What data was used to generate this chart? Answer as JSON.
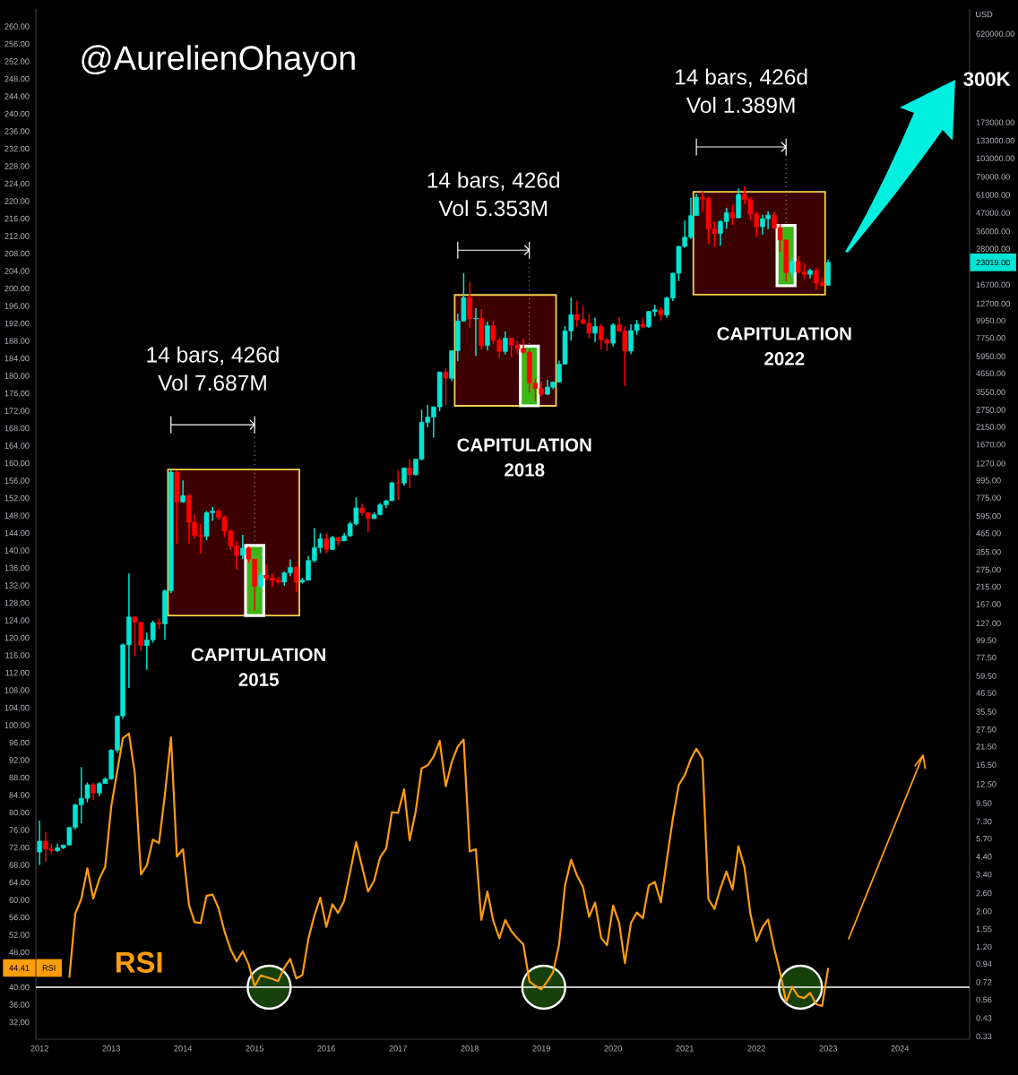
{
  "chart_data": {
    "type": "candlestick",
    "title": "@AurelienOhayon",
    "y2label": "USD",
    "log": "y2",
    "x": [
      "2012-01",
      "2012-02",
      "2012-03",
      "2012-04",
      "2012-05",
      "2012-06",
      "2012-07",
      "2012-08",
      "2012-09",
      "2012-10",
      "2012-11",
      "2012-12",
      "2013-01",
      "2013-02",
      "2013-03",
      "2013-04",
      "2013-05",
      "2013-06",
      "2013-07",
      "2013-08",
      "2013-09",
      "2013-10",
      "2013-11",
      "2013-12",
      "2014-01",
      "2014-02",
      "2014-03",
      "2014-04",
      "2014-05",
      "2014-06",
      "2014-07",
      "2014-08",
      "2014-09",
      "2014-10",
      "2014-11",
      "2014-12",
      "2015-01",
      "2015-02",
      "2015-03",
      "2015-04",
      "2015-05",
      "2015-06",
      "2015-07",
      "2015-08",
      "2015-09",
      "2015-10",
      "2015-11",
      "2015-12",
      "2016-01",
      "2016-02",
      "2016-03",
      "2016-04",
      "2016-05",
      "2016-06",
      "2016-07",
      "2016-08",
      "2016-09",
      "2016-10",
      "2016-11",
      "2016-12",
      "2017-01",
      "2017-02",
      "2017-03",
      "2017-04",
      "2017-05",
      "2017-06",
      "2017-07",
      "2017-08",
      "2017-09",
      "2017-10",
      "2017-11",
      "2017-12",
      "2018-01",
      "2018-02",
      "2018-03",
      "2018-04",
      "2018-05",
      "2018-06",
      "2018-07",
      "2018-08",
      "2018-09",
      "2018-10",
      "2018-11",
      "2018-12",
      "2019-01",
      "2019-02",
      "2019-03",
      "2019-04",
      "2019-05",
      "2019-06",
      "2019-07",
      "2019-08",
      "2019-09",
      "2019-10",
      "2019-11",
      "2019-12",
      "2020-01",
      "2020-02",
      "2020-03",
      "2020-04",
      "2020-05",
      "2020-06",
      "2020-07",
      "2020-08",
      "2020-09",
      "2020-10",
      "2020-11",
      "2020-12",
      "2021-01",
      "2021-02",
      "2021-03",
      "2021-04",
      "2021-05",
      "2021-06",
      "2021-07",
      "2021-08",
      "2021-09",
      "2021-10",
      "2021-11",
      "2021-12",
      "2022-01",
      "2022-02",
      "2022-03",
      "2022-04",
      "2022-05",
      "2022-06",
      "2022-07",
      "2022-08",
      "2022-09",
      "2022-10",
      "2022-11",
      "2022-12",
      "2023-01"
    ],
    "xlim": [
      "2011-12-13",
      "2024-12-22"
    ],
    "xticks": [
      "2012",
      "2013",
      "2014",
      "2015",
      "2016",
      "2017",
      "2018",
      "2019",
      "2020",
      "2021",
      "2022",
      "2023",
      "2024"
    ],
    "ylim": [
      28.1,
      264
    ],
    "yticks": [
      {
        "value": 32,
        "label": "32.00"
      },
      {
        "value": 36,
        "label": "36.00"
      },
      {
        "value": 40,
        "label": "40.00"
      },
      {
        "value": 44.41,
        "label": "44.41"
      },
      {
        "value": 48,
        "label": "48.00"
      },
      {
        "value": 52,
        "label": "52.00"
      },
      {
        "value": 56,
        "label": "56.00"
      },
      {
        "value": 60,
        "label": "60.00"
      },
      {
        "value": 64,
        "label": "64.00"
      },
      {
        "value": 68,
        "label": "68.00"
      },
      {
        "value": 72,
        "label": "72.00"
      },
      {
        "value": 76,
        "label": "76.00"
      },
      {
        "value": 80,
        "label": "80.00"
      },
      {
        "value": 84,
        "label": "84.00"
      },
      {
        "value": 88,
        "label": "88.00"
      },
      {
        "value": 92,
        "label": "92.00"
      },
      {
        "value": 96,
        "label": "96.00"
      },
      {
        "value": 100,
        "label": "100.00"
      },
      {
        "value": 104,
        "label": "104.00"
      },
      {
        "value": 108,
        "label": "108.00"
      },
      {
        "value": 112,
        "label": "112.00"
      },
      {
        "value": 116,
        "label": "116.00"
      },
      {
        "value": 120,
        "label": "120.00"
      },
      {
        "value": 124,
        "label": "124.00"
      },
      {
        "value": 128,
        "label": "128.00"
      },
      {
        "value": 132,
        "label": "132.00"
      },
      {
        "value": 136,
        "label": "136.00"
      },
      {
        "value": 140,
        "label": "140.00"
      },
      {
        "value": 144,
        "label": "144.00"
      },
      {
        "value": 148,
        "label": "148.00"
      },
      {
        "value": 152,
        "label": "152.00"
      },
      {
        "value": 156,
        "label": "156.00"
      },
      {
        "value": 160,
        "label": "160.00"
      },
      {
        "value": 164,
        "label": "164.00"
      },
      {
        "value": 168,
        "label": "168.00"
      },
      {
        "value": 172,
        "label": "172.00"
      },
      {
        "value": 176,
        "label": "176.00"
      },
      {
        "value": 180,
        "label": "180.00"
      },
      {
        "value": 184,
        "label": "184.00"
      },
      {
        "value": 188,
        "label": "188.00"
      },
      {
        "value": 192,
        "label": "192.00"
      },
      {
        "value": 196,
        "label": "196.00"
      },
      {
        "value": 200,
        "label": "200.00"
      },
      {
        "value": 204,
        "label": "204.00"
      },
      {
        "value": 208,
        "label": "208.00"
      },
      {
        "value": 212,
        "label": "212.00"
      },
      {
        "value": 216,
        "label": "216.00"
      },
      {
        "value": 220,
        "label": "220.00"
      },
      {
        "value": 224,
        "label": "224.00"
      },
      {
        "value": 228,
        "label": "228.00"
      },
      {
        "value": 232,
        "label": "232.00"
      },
      {
        "value": 236,
        "label": "236.00"
      },
      {
        "value": 240,
        "label": "240.00"
      },
      {
        "value": 244,
        "label": "244.00"
      },
      {
        "value": 248,
        "label": "248.00"
      },
      {
        "value": 252,
        "label": "252.00"
      },
      {
        "value": 256,
        "label": "256.00"
      },
      {
        "value": 260,
        "label": "260.00"
      }
    ],
    "y2lim": [
      0.317,
      888000
    ],
    "y2ticks": [
      {
        "value": 0.33,
        "label": "0.33"
      },
      {
        "value": 0.43,
        "label": "0.43"
      },
      {
        "value": 0.56,
        "label": "0.56"
      },
      {
        "value": 0.72,
        "label": "0.72"
      },
      {
        "value": 0.94,
        "label": "0.94"
      },
      {
        "value": 1.2,
        "label": "1.20"
      },
      {
        "value": 1.55,
        "label": "1.55"
      },
      {
        "value": 2,
        "label": "2.00"
      },
      {
        "value": 2.6,
        "label": "2.60"
      },
      {
        "value": 3.4,
        "label": "3.40"
      },
      {
        "value": 4.4,
        "label": "4.40"
      },
      {
        "value": 5.7,
        "label": "5.70"
      },
      {
        "value": 7.3,
        "label": "7.30"
      },
      {
        "value": 9.5,
        "label": "9.50"
      },
      {
        "value": 12.5,
        "label": "12.50"
      },
      {
        "value": 16.5,
        "label": "16.50"
      },
      {
        "value": 21.5,
        "label": "21.50"
      },
      {
        "value": 27.5,
        "label": "27.50"
      },
      {
        "value": 35.5,
        "label": "35.50"
      },
      {
        "value": 46.5,
        "label": "46.50"
      },
      {
        "value": 59.5,
        "label": "59.50"
      },
      {
        "value": 77.5,
        "label": "77.50"
      },
      {
        "value": 99.5,
        "label": "99.50"
      },
      {
        "value": 127,
        "label": "127.00"
      },
      {
        "value": 167,
        "label": "167.00"
      },
      {
        "value": 215,
        "label": "215.00"
      },
      {
        "value": 275,
        "label": "275.00"
      },
      {
        "value": 355,
        "label": "355.00"
      },
      {
        "value": 465,
        "label": "465.00"
      },
      {
        "value": 595,
        "label": "595.00"
      },
      {
        "value": 775,
        "label": "775.00"
      },
      {
        "value": 995,
        "label": "995.00"
      },
      {
        "value": 1270,
        "label": "1270.00"
      },
      {
        "value": 1670,
        "label": "1670.00"
      },
      {
        "value": 2150,
        "label": "2150.00"
      },
      {
        "value": 2750,
        "label": "2750.00"
      },
      {
        "value": 3550,
        "label": "3550.00"
      },
      {
        "value": 4650,
        "label": "4650.00"
      },
      {
        "value": 5950,
        "label": "5950.00"
      },
      {
        "value": 7750,
        "label": "7750.00"
      },
      {
        "value": 9950,
        "label": "9950.00"
      },
      {
        "value": 12700,
        "label": "12700.00"
      },
      {
        "value": 16700,
        "label": "16700.00"
      },
      {
        "value": 23019,
        "label": "23019.00"
      },
      {
        "value": 28000,
        "label": "28000.00"
      },
      {
        "value": 36000,
        "label": "36000.00"
      },
      {
        "value": 47000,
        "label": "47000.00"
      },
      {
        "value": 61000,
        "label": "61000.00"
      },
      {
        "value": 79000,
        "label": "79000.00"
      },
      {
        "value": 103000,
        "label": "103000.00"
      },
      {
        "value": 133000,
        "label": "133000.00"
      },
      {
        "value": 173000,
        "label": "173000.00"
      },
      {
        "value": 620000,
        "label": "620000.00"
      }
    ],
    "series": [
      {
        "axis": "y2",
        "ohlc": [
          [
            4.7,
            7.4,
            3.9,
            5.5
          ],
          [
            5.5,
            6.3,
            4.1,
            4.9
          ],
          [
            4.9,
            5.3,
            4.6,
            4.8
          ],
          [
            4.8,
            5.3,
            4.7,
            5.0
          ],
          [
            5.0,
            5.2,
            4.9,
            5.2
          ],
          [
            5.2,
            6.7,
            5.2,
            6.7
          ],
          [
            6.7,
            9.4,
            6.5,
            9.3
          ],
          [
            9.3,
            16.0,
            7.1,
            10.2
          ],
          [
            10.2,
            12.8,
            9.6,
            12.4
          ],
          [
            12.4,
            12.8,
            10.0,
            11.0
          ],
          [
            11.0,
            12.9,
            10.5,
            12.6
          ],
          [
            12.6,
            13.8,
            12.6,
            13.5
          ],
          [
            13.5,
            20.7,
            13.3,
            20.4
          ],
          [
            20.4,
            33.6,
            19.6,
            33.4
          ],
          [
            33.4,
            95,
            32,
            93
          ],
          [
            93,
            260,
            50,
            139
          ],
          [
            139,
            140,
            79,
            129
          ],
          [
            129,
            130,
            85,
            92
          ],
          [
            92,
            111,
            65,
            100
          ],
          [
            100,
            132,
            96,
            128
          ],
          [
            128,
            136,
            117,
            126
          ],
          [
            126,
            206,
            100,
            203
          ],
          [
            203,
            1163,
            196,
            1120
          ],
          [
            1120,
            1150,
            400,
            730
          ],
          [
            730,
            995,
            720,
            800
          ],
          [
            800,
            820,
            400,
            545
          ],
          [
            545,
            610,
            430,
            450
          ],
          [
            450,
            530,
            345,
            445
          ],
          [
            445,
            640,
            420,
            625
          ],
          [
            625,
            680,
            555,
            640
          ],
          [
            640,
            660,
            565,
            585
          ],
          [
            585,
            600,
            440,
            480
          ],
          [
            480,
            490,
            365,
            388
          ],
          [
            388,
            415,
            275,
            338
          ],
          [
            338,
            455,
            320,
            375
          ],
          [
            375,
            385,
            305,
            320
          ],
          [
            320,
            321,
            152,
            217
          ],
          [
            217,
            266,
            210,
            254
          ],
          [
            254,
            296,
            235,
            244
          ],
          [
            244,
            260,
            215,
            236
          ],
          [
            236,
            248,
            225,
            230
          ],
          [
            230,
            268,
            218,
            263
          ],
          [
            263,
            319,
            250,
            284
          ],
          [
            284,
            290,
            198,
            230
          ],
          [
            230,
            245,
            225,
            236
          ],
          [
            236,
            335,
            235,
            314
          ],
          [
            314,
            500,
            305,
            378
          ],
          [
            378,
            465,
            350,
            430
          ],
          [
            430,
            465,
            349,
            368
          ],
          [
            368,
            448,
            365,
            437
          ],
          [
            437,
            440,
            390,
            416
          ],
          [
            416,
            467,
            415,
            448
          ],
          [
            448,
            550,
            440,
            532
          ],
          [
            532,
            778,
            520,
            670
          ],
          [
            670,
            712,
            600,
            624
          ],
          [
            624,
            625,
            470,
            575
          ],
          [
            575,
            630,
            570,
            608
          ],
          [
            608,
            720,
            600,
            700
          ],
          [
            700,
            752,
            667,
            742
          ],
          [
            742,
            975,
            740,
            962
          ],
          [
            962,
            1150,
            752,
            958
          ],
          [
            958,
            1200,
            920,
            1190
          ],
          [
            1190,
            1350,
            890,
            1080
          ],
          [
            1080,
            1355,
            1070,
            1350
          ],
          [
            1350,
            2760,
            1330,
            2300
          ],
          [
            2300,
            2960,
            2140,
            2480
          ],
          [
            2480,
            2900,
            1845,
            2870
          ],
          [
            2870,
            4780,
            2700,
            4740
          ],
          [
            4740,
            4990,
            2960,
            4340
          ],
          [
            4340,
            6470,
            4160,
            6450
          ],
          [
            6450,
            11000,
            5550,
            9900
          ],
          [
            9900,
            19700,
            9800,
            13850
          ],
          [
            13850,
            17300,
            9000,
            10200
          ],
          [
            10200,
            11900,
            5980,
            10300
          ],
          [
            10300,
            11700,
            6600,
            6950
          ],
          [
            6950,
            9800,
            6500,
            9250
          ],
          [
            9250,
            9950,
            7100,
            7500
          ],
          [
            7500,
            7780,
            5800,
            6380
          ],
          [
            6380,
            8500,
            6100,
            7730
          ],
          [
            7730,
            7770,
            5900,
            7010
          ],
          [
            7010,
            7400,
            6100,
            6630
          ],
          [
            6630,
            7680,
            6200,
            6300
          ],
          [
            6300,
            6570,
            3530,
            4040
          ],
          [
            4040,
            4300,
            3120,
            3740
          ],
          [
            3740,
            4100,
            3350,
            3440
          ],
          [
            3440,
            4240,
            3400,
            3820
          ],
          [
            3820,
            4140,
            3700,
            4100
          ],
          [
            4100,
            5600,
            4080,
            5320
          ],
          [
            5320,
            9200,
            5300,
            8570
          ],
          [
            8570,
            13900,
            7450,
            10850
          ],
          [
            10850,
            13200,
            9100,
            10080
          ],
          [
            10080,
            12300,
            9400,
            9600
          ],
          [
            9600,
            10900,
            7700,
            8300
          ],
          [
            8300,
            10400,
            7300,
            9150
          ],
          [
            9150,
            9510,
            6550,
            7550
          ],
          [
            7550,
            7750,
            6430,
            7190
          ],
          [
            7190,
            9580,
            6850,
            9350
          ],
          [
            9350,
            10500,
            8450,
            8540
          ],
          [
            8540,
            9190,
            3870,
            6420
          ],
          [
            6420,
            9430,
            6150,
            8630
          ],
          [
            8630,
            10070,
            8100,
            9450
          ],
          [
            9450,
            10390,
            8900,
            9140
          ],
          [
            9140,
            11440,
            8970,
            11350
          ],
          [
            11350,
            12480,
            10600,
            11650
          ],
          [
            11650,
            12070,
            9930,
            10780
          ],
          [
            10780,
            14100,
            10370,
            13800
          ],
          [
            13800,
            19900,
            13200,
            19700
          ],
          [
            19700,
            29300,
            17600,
            29000
          ],
          [
            29000,
            42000,
            28400,
            33100
          ],
          [
            33100,
            58400,
            32300,
            45200
          ],
          [
            45200,
            61800,
            45000,
            58800
          ],
          [
            58800,
            64100,
            47500,
            57700
          ],
          [
            57700,
            59500,
            30200,
            37300
          ],
          [
            37300,
            41700,
            28800,
            35000
          ],
          [
            35000,
            42300,
            29300,
            41500
          ],
          [
            41500,
            50500,
            37300,
            47100
          ],
          [
            47100,
            52900,
            39600,
            43800
          ],
          [
            43800,
            67000,
            43300,
            61300
          ],
          [
            61300,
            69000,
            53300,
            57000
          ],
          [
            57000,
            59100,
            42000,
            46200
          ],
          [
            46200,
            47900,
            33000,
            38500
          ],
          [
            38500,
            45800,
            34300,
            43200
          ],
          [
            43200,
            48200,
            37200,
            45500
          ],
          [
            45500,
            47500,
            37600,
            37700
          ],
          [
            37700,
            40000,
            26700,
            31800
          ],
          [
            31800,
            31900,
            17600,
            19900
          ],
          [
            19900,
            24700,
            18800,
            23300
          ],
          [
            23300,
            25200,
            19600,
            20050
          ],
          [
            20050,
            22800,
            18150,
            19400
          ],
          [
            19400,
            21000,
            18200,
            20500
          ],
          [
            20500,
            21450,
            15500,
            17150
          ],
          [
            17150,
            18400,
            16250,
            16550
          ],
          [
            16550,
            23960,
            16500,
            23019
          ]
        ],
        "colors": [
          "#00e5d5",
          "#ff0000",
          "#ff0000",
          "#00e5d5",
          "#00e5d5",
          "#00e5d5",
          "#00e5d5",
          "#00e5d5",
          "#00e5d5",
          "#ff0000",
          "#00e5d5",
          "#00e5d5",
          "#00e5d5",
          "#00e5d5",
          "#00e5d5",
          "#00e5d5",
          "#ff0000",
          "#ff0000",
          "#00e5d5",
          "#00e5d5",
          "#ff0000",
          "#00e5d5",
          "#00e5d5",
          "#ff0000",
          "#00e5d5",
          "#ff0000",
          "#ff0000",
          "#ff0000",
          "#00e5d5",
          "#00e5d5",
          "#ff0000",
          "#ff0000",
          "#ff0000",
          "#ff0000",
          "#00e5d5",
          "#ff0000",
          "#ff0000",
          "#00e5d5",
          "#ff0000",
          "#ff0000",
          "#ff0000",
          "#00e5d5",
          "#00e5d5",
          "#ff0000",
          "#00e5d5",
          "#00e5d5",
          "#00e5d5",
          "#00e5d5",
          "#ff0000",
          "#00e5d5",
          "#ff0000",
          "#00e5d5",
          "#00e5d5",
          "#00e5d5",
          "#ff0000",
          "#ff0000",
          "#00e5d5",
          "#00e5d5",
          "#00e5d5",
          "#00e5d5",
          "#ff0000",
          "#00e5d5",
          "#ff0000",
          "#00e5d5",
          "#00e5d5",
          "#00e5d5",
          "#00e5d5",
          "#00e5d5",
          "#ff0000",
          "#00e5d5",
          "#00e5d5",
          "#00e5d5",
          "#ff0000",
          "#00e5d5",
          "#ff0000",
          "#00e5d5",
          "#ff0000",
          "#ff0000",
          "#00e5d5",
          "#ff0000",
          "#ff0000",
          "#ff0000",
          "#ff0000",
          "#ff0000",
          "#ff0000",
          "#00e5d5",
          "#00e5d5",
          "#00e5d5",
          "#00e5d5",
          "#00e5d5",
          "#ff0000",
          "#ff0000",
          "#ff0000",
          "#00e5d5",
          "#ff0000",
          "#ff0000",
          "#00e5d5",
          "#ff0000",
          "#ff0000",
          "#00e5d5",
          "#00e5d5",
          "#ff0000",
          "#00e5d5",
          "#00e5d5",
          "#ff0000",
          "#00e5d5",
          "#00e5d5",
          "#00e5d5",
          "#00e5d5",
          "#00e5d5",
          "#00e5d5",
          "#ff0000",
          "#ff0000",
          "#ff0000",
          "#00e5d5",
          "#00e5d5",
          "#ff0000",
          "#00e5d5",
          "#ff0000",
          "#ff0000",
          "#ff0000",
          "#00e5d5",
          "#00e5d5",
          "#ff0000",
          "#ff0000",
          "#ff0000",
          "#00e5d5",
          "#ff0000",
          "#ff0000",
          "#00e5d5",
          "#ff0000",
          "#ff0000",
          "#00e5d5"
        ]
      },
      {
        "type": "line",
        "name": "RSI",
        "color": "#ff9d0a",
        "values": [
          null,
          null,
          null,
          null,
          null,
          42.2,
          56.8,
          60.2,
          67.2,
          60.3,
          64.8,
          67.6,
          81.4,
          89.6,
          97.0,
          98.1,
          88.9,
          65.8,
          67.9,
          73.8,
          73.0,
          84.1,
          97.2,
          69.9,
          71.6,
          58.8,
          54.9,
          54.7,
          60.9,
          61.2,
          58.1,
          52.7,
          48.6,
          45.9,
          48.2,
          45.3,
          40.2,
          42.7,
          42.3,
          41.9,
          41.4,
          44.5,
          46.5,
          42.0,
          42.8,
          51.0,
          56.4,
          60.5,
          53.8,
          59.0,
          57.0,
          59.8,
          66.3,
          73.2,
          67.7,
          61.9,
          64.4,
          69.7,
          71.7,
          80.1,
          79.9,
          85.3,
          73.6,
          80.3,
          90.1,
          90.8,
          92.8,
          96.4,
          86.0,
          91.5,
          95.1,
          96.7,
          71.1,
          71.6,
          55.4,
          61.9,
          55.2,
          51.2,
          55.4,
          52.8,
          51.2,
          49.8,
          41.3,
          40.3,
          39.5,
          41.4,
          43.4,
          49.8,
          63.3,
          69.2,
          65.6,
          62.9,
          56.1,
          59.4,
          51.3,
          49.6,
          58.7,
          54.7,
          45.5,
          54.7,
          57.1,
          55.8,
          63.3,
          64.1,
          59.4,
          69.1,
          78.6,
          86.3,
          88.6,
          92.3,
          94.6,
          92.3,
          60.2,
          57.9,
          62.6,
          66.5,
          62.4,
          72.3,
          67.4,
          56.8,
          50.5,
          53.8,
          55.5,
          48.9,
          43.4,
          36.6,
          40.1,
          37.9,
          37.5,
          38.7,
          36.1,
          35.7,
          44.41
        ]
      }
    ],
    "bands": [
      {
        "axis": "x",
        "from": "2013-11",
        "to": "2015-08",
        "label": "CAPITULATION 2015",
        "color": "#3d0000"
      },
      {
        "axis": "x",
        "from": "2014-12",
        "to": "2015-02",
        "color": "#3fb618"
      },
      {
        "axis": "x",
        "from": "2017-11",
        "to": "2019-03",
        "label": "CAPITULATION 2018",
        "color": "#3d0000"
      },
      {
        "axis": "x",
        "from": "2018-10",
        "to": "2018-12",
        "color": "#3fb618"
      },
      {
        "axis": "x",
        "from": "2021-03",
        "to": "2022-12",
        "label": "CAPITULATION 2022",
        "color": "#3d0000"
      },
      {
        "axis": "x",
        "from": "2022-05",
        "to": "2022-07",
        "color": "#3fb618"
      }
    ],
    "ref_lines": [
      {
        "axis": "y",
        "value": 40,
        "color": "#ffffff"
      }
    ],
    "annotations": [
      "14 bars, 426d",
      "Vol 7.687M",
      "14 bars, 426d",
      "Vol 5.353M",
      "14 bars, 426d",
      "Vol 1.389M",
      "300K"
    ]
  }
}
